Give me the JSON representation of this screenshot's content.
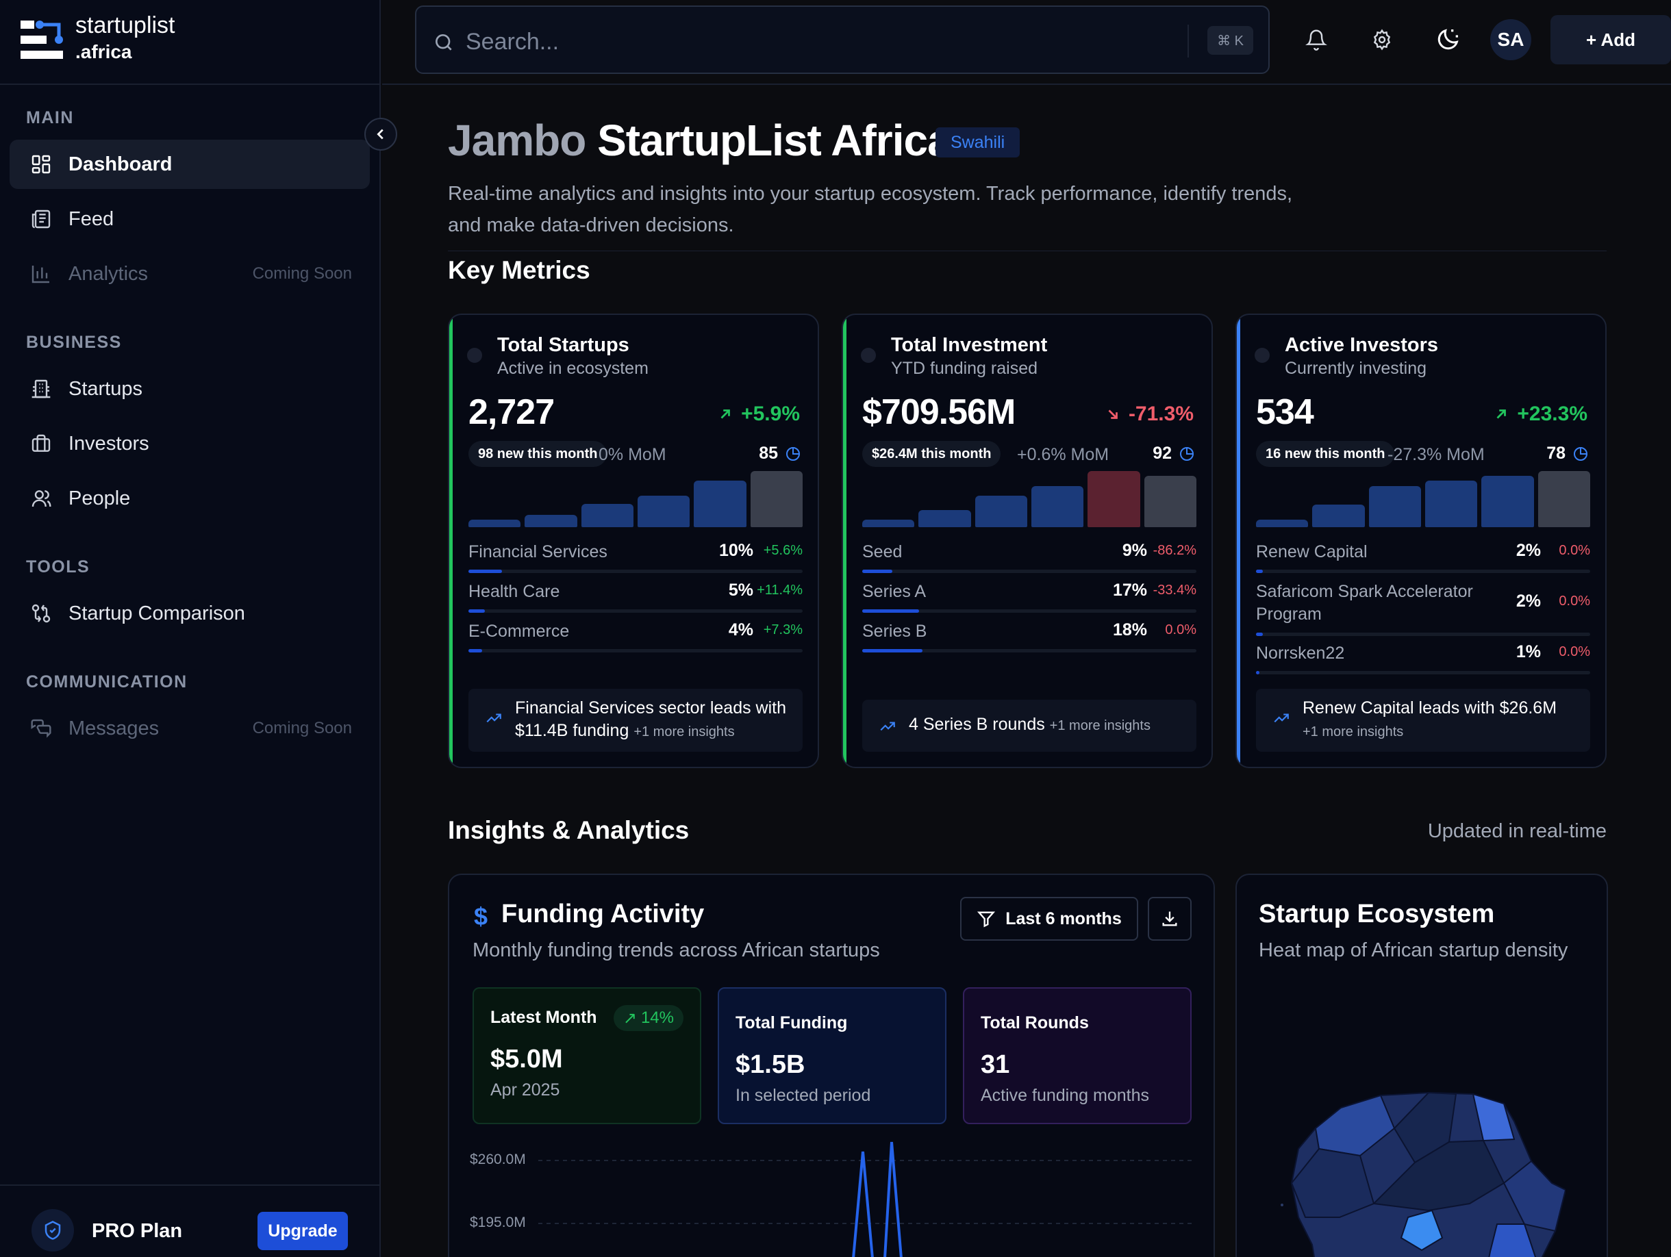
{
  "brand": {
    "name": "startuplist",
    "tld": ".africa"
  },
  "sidebar": {
    "sections": [
      {
        "title": "MAIN"
      },
      {
        "title": "BUSINESS"
      },
      {
        "title": "TOOLS"
      },
      {
        "title": "COMMUNICATION"
      }
    ],
    "items": [
      {
        "label": "Dashboard",
        "icon": "dashboard-icon",
        "active": true
      },
      {
        "label": "Feed",
        "icon": "newspaper-icon"
      },
      {
        "label": "Analytics",
        "icon": "bar-chart-icon",
        "badge": "Coming Soon",
        "disabled": true
      },
      {
        "label": "Startups",
        "icon": "building-icon"
      },
      {
        "label": "Investors",
        "icon": "briefcase-icon"
      },
      {
        "label": "People",
        "icon": "users-icon"
      },
      {
        "label": "Startup Comparison",
        "icon": "compare-icon"
      },
      {
        "label": "Messages",
        "icon": "messages-icon",
        "badge": "Coming Soon",
        "disabled": true
      }
    ],
    "plan": {
      "label": "PRO Plan",
      "upgrade": "Upgrade"
    }
  },
  "topbar": {
    "search_placeholder": "Search...",
    "shortcut": "⌘ K",
    "avatar": "SA",
    "add_label": "+ Add"
  },
  "hero": {
    "greeting": "Jambo",
    "title": "StartupList Africa",
    "language": "Swahili",
    "subtitle": "Real-time analytics and insights into your startup ecosystem. Track performance, identify trends, and make data-driven decisions."
  },
  "key_metrics": {
    "title": "Key Metrics",
    "cards": [
      {
        "title": "Total Startups",
        "subtitle": "Active in ecosystem",
        "value": "2,727",
        "change": "+5.9%",
        "direction": "up",
        "pill": "98 new this month",
        "mom": "0% MoM",
        "score": "85",
        "accent": "#22c55e",
        "bars": [
          0.14,
          0.22,
          0.42,
          0.56,
          0.83,
          1.0
        ],
        "rows": [
          {
            "label": "Financial Services",
            "value": "10%",
            "change": "+5.6%",
            "fill": 0.1
          },
          {
            "label": "Health Care",
            "value": "5%",
            "change": "+11.4%",
            "fill": 0.05
          },
          {
            "label": "E-Commerce",
            "value": "4%",
            "change": "+7.3%",
            "fill": 0.04
          }
        ],
        "insight": "Financial Services sector leads with $11.4B funding",
        "insight_more": "+1 more insights"
      },
      {
        "title": "Total Investment",
        "subtitle": "YTD funding raised",
        "value": "$709.56M",
        "change": "-71.3%",
        "direction": "down",
        "pill": "$26.4M this month",
        "mom": "+0.6% MoM",
        "score": "92",
        "accent": "#22c55e",
        "bars": [
          0.14,
          0.3,
          0.56,
          0.73,
          1.0,
          0.92
        ],
        "rows": [
          {
            "label": "Seed",
            "value": "9%",
            "change": "-86.2%",
            "fill": 0.09
          },
          {
            "label": "Series A",
            "value": "17%",
            "change": "-33.4%",
            "fill": 0.17
          },
          {
            "label": "Series B",
            "value": "18%",
            "change": "0.0%",
            "fill": 0.18
          }
        ],
        "insight": "4 Series B rounds",
        "insight_more": "+1 more insights"
      },
      {
        "title": "Active Investors",
        "subtitle": "Currently investing",
        "value": "534",
        "change": "+23.3%",
        "direction": "up",
        "pill": "16 new this month",
        "mom": "-27.3% MoM",
        "score": "78",
        "accent": "#3b82f6",
        "bars": [
          0.14,
          0.4,
          0.73,
          0.83,
          0.92,
          1.0
        ],
        "rows": [
          {
            "label": "Renew Capital",
            "value": "2%",
            "change": "0.0%",
            "fill": 0.02
          },
          {
            "label": "Safaricom Spark Accelerator Program",
            "value": "2%",
            "change": "0.0%",
            "fill": 0.02
          },
          {
            "label": "Norrsken22",
            "value": "1%",
            "change": "0.0%",
            "fill": 0.01
          }
        ],
        "insight": "Renew Capital leads with $26.6M",
        "insight_more": "+1 more insights"
      }
    ]
  },
  "insights": {
    "title": "Insights & Analytics",
    "updated": "Updated in real-time"
  },
  "funding_activity": {
    "title": "Funding Activity",
    "subtitle": "Monthly funding trends across African startups",
    "filter": "Last 6 months",
    "stats": {
      "latest": {
        "label": "Latest Month",
        "value": "$5.0M",
        "sub": "Apr 2025",
        "change": "14%"
      },
      "total": {
        "label": "Total Funding",
        "value": "$1.5B",
        "sub": "In selected period"
      },
      "rounds": {
        "label": "Total Rounds",
        "value": "31",
        "sub": "Active funding months"
      }
    },
    "axis": [
      "$260.0M",
      "$195.0M"
    ]
  },
  "chart_data": {
    "type": "line",
    "title": "Funding Activity",
    "y_ticks": [
      "$260.0M",
      "$195.0M"
    ],
    "series": [
      {
        "values": [
          120,
          210,
          110,
          240,
          110
        ]
      }
    ]
  },
  "ecosystem": {
    "title": "Startup Ecosystem",
    "subtitle": "Heat map of African startup density"
  },
  "colors": {
    "accent": "#1d4ed8",
    "up": "#22c55e",
    "down": "#f05d6b",
    "bar": "#1b3a7a",
    "bar_highlight": "#5b2230",
    "bar_muted": "#3a3f4c"
  }
}
